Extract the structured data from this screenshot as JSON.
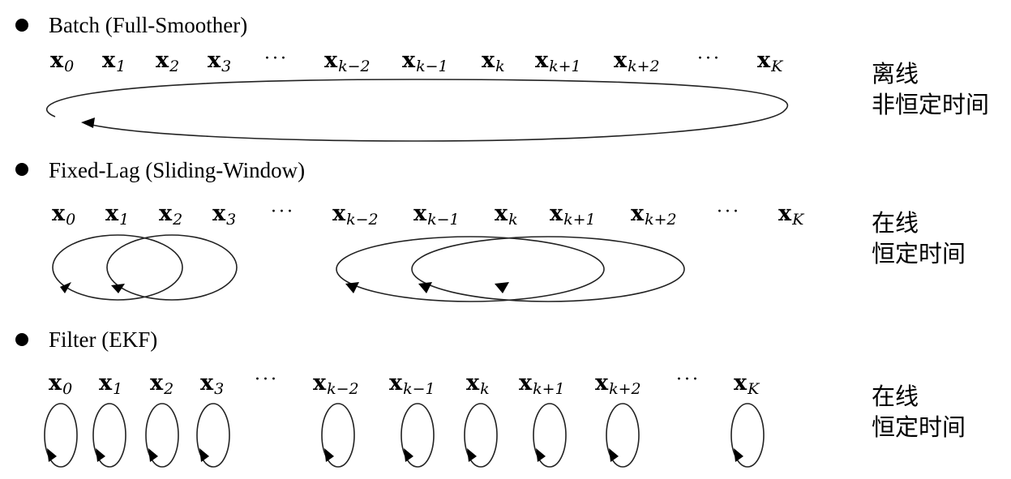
{
  "sections": [
    {
      "id": "batch",
      "title": "Batch (Full-Smoother)",
      "label_line1": "离线",
      "label_line2": "非恒定时间",
      "variables": [
        {
          "base": "x",
          "sub": "0"
        },
        {
          "base": "x",
          "sub": "1"
        },
        {
          "base": "x",
          "sub": "2"
        },
        {
          "base": "x",
          "sub": "3"
        },
        {
          "base": "x",
          "sub": "k−2"
        },
        {
          "base": "x",
          "sub": "k−1"
        },
        {
          "base": "x",
          "sub": "k"
        },
        {
          "base": "x",
          "sub": "k+1"
        },
        {
          "base": "x",
          "sub": "k+2"
        },
        {
          "base": "x",
          "sub": "K"
        }
      ],
      "ellipsis": "···"
    },
    {
      "id": "fixed-lag",
      "title": "Fixed-Lag (Sliding-Window)",
      "label_line1": "在线",
      "label_line2": "恒定时间",
      "variables": [
        {
          "base": "x",
          "sub": "0"
        },
        {
          "base": "x",
          "sub": "1"
        },
        {
          "base": "x",
          "sub": "2"
        },
        {
          "base": "x",
          "sub": "3"
        },
        {
          "base": "x",
          "sub": "k−2"
        },
        {
          "base": "x",
          "sub": "k−1"
        },
        {
          "base": "x",
          "sub": "k"
        },
        {
          "base": "x",
          "sub": "k+1"
        },
        {
          "base": "x",
          "sub": "k+2"
        },
        {
          "base": "x",
          "sub": "K"
        }
      ],
      "ellipsis": "···"
    },
    {
      "id": "filter",
      "title": "Filter (EKF)",
      "label_line1": "在线",
      "label_line2": "恒定时间",
      "variables": [
        {
          "base": "x",
          "sub": "0"
        },
        {
          "base": "x",
          "sub": "1"
        },
        {
          "base": "x",
          "sub": "2"
        },
        {
          "base": "x",
          "sub": "3"
        },
        {
          "base": "x",
          "sub": "k−2"
        },
        {
          "base": "x",
          "sub": "k−1"
        },
        {
          "base": "x",
          "sub": "k"
        },
        {
          "base": "x",
          "sub": "k+1"
        },
        {
          "base": "x",
          "sub": "k+2"
        },
        {
          "base": "x",
          "sub": "K"
        }
      ],
      "ellipsis": "···"
    }
  ]
}
